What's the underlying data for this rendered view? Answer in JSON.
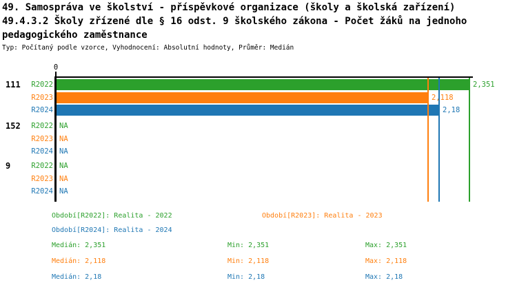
{
  "title": {
    "line1": "49. Samospráva ve školství - příspěvkové organizace (školy a školská zařízení)",
    "line2": "49.4.3.2 Školy zřízené dle § 16 odst. 9 školského zákona - Počet žáků na jednoho",
    "line3": "pedagogického zaměstnance",
    "subtitle": "Typ: Počítaný podle vzorce, Vyhodnocení: Absolutní hodnoty, Průměr: Medián"
  },
  "colors": {
    "r2022": "#2ca02c",
    "r2023": "#ff7f0e",
    "r2024": "#1f77b4",
    "axis": "#000000"
  },
  "chart_data": {
    "type": "bar",
    "orientation": "horizontal",
    "axis_zero_label": "0",
    "xlim": [
      0,
      2.37
    ],
    "na_text": "NA",
    "groups": [
      {
        "label": "111",
        "rows": [
          {
            "series": "R2022",
            "color_key": "r2022",
            "value": 2.351,
            "value_label": "2,351"
          },
          {
            "series": "R2023",
            "color_key": "r2023",
            "value": 2.118,
            "value_label": "2,118"
          },
          {
            "series": "R2024",
            "color_key": "r2024",
            "value": 2.18,
            "value_label": "2,18"
          }
        ]
      },
      {
        "label": "152",
        "rows": [
          {
            "series": "R2022",
            "color_key": "r2022",
            "value": null,
            "value_label": "NA"
          },
          {
            "series": "R2023",
            "color_key": "r2023",
            "value": null,
            "value_label": "NA"
          },
          {
            "series": "R2024",
            "color_key": "r2024",
            "value": null,
            "value_label": "NA"
          }
        ]
      },
      {
        "label": "9",
        "rows": [
          {
            "series": "R2022",
            "color_key": "r2022",
            "value": null,
            "value_label": "NA"
          },
          {
            "series": "R2023",
            "color_key": "r2023",
            "value": null,
            "value_label": "NA"
          },
          {
            "series": "R2024",
            "color_key": "r2024",
            "value": null,
            "value_label": "NA"
          }
        ]
      }
    ],
    "median_lines": [
      {
        "color_key": "r2022",
        "value": 2.351
      },
      {
        "color_key": "r2023",
        "value": 2.118
      },
      {
        "color_key": "r2024",
        "value": 2.18
      }
    ]
  },
  "legend": {
    "items": [
      {
        "label": "Období[R2022]: Realita - 2022",
        "color_key": "r2022"
      },
      {
        "label": "Období[R2023]: Realita - 2023",
        "color_key": "r2023"
      },
      {
        "label": "Období[R2024]: Realita - 2024",
        "color_key": "r2024"
      }
    ]
  },
  "stats": {
    "rows": [
      {
        "median": "Medián: 2,351",
        "min": "Min: 2,351",
        "max": "Max: 2,351",
        "color_key": "r2022"
      },
      {
        "median": "Medián: 2,118",
        "min": "Min: 2,118",
        "max": "Max: 2,118",
        "color_key": "r2023"
      },
      {
        "median": "Medián: 2,18",
        "min": "Min: 2,18",
        "max": "Max: 2,18",
        "color_key": "r2024"
      }
    ]
  }
}
